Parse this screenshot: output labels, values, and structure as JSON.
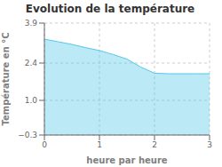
{
  "chart_data": {
    "type": "area",
    "title": "Evolution de la température",
    "xlabel": "heure par heure",
    "ylabel": "Température en °C",
    "x": [
      0,
      0.25,
      0.5,
      0.75,
      1.0,
      1.25,
      1.5,
      1.75,
      2.0,
      2.25,
      2.5,
      2.75,
      3.0
    ],
    "values": [
      3.3,
      3.2,
      3.1,
      2.98,
      2.87,
      2.72,
      2.55,
      2.25,
      2.02,
      2.0,
      2.0,
      2.0,
      2.0
    ],
    "color": "#55c8e8",
    "xlim": [
      0,
      3
    ],
    "ylim": [
      -0.3,
      3.9
    ],
    "xticks": [
      0,
      1,
      2,
      3
    ],
    "yticks": [
      {
        "value": -0.3,
        "label": "−0.3"
      },
      {
        "value": 1.0,
        "label": "1.0"
      },
      2.4,
      3.9
    ],
    "grid": true
  }
}
